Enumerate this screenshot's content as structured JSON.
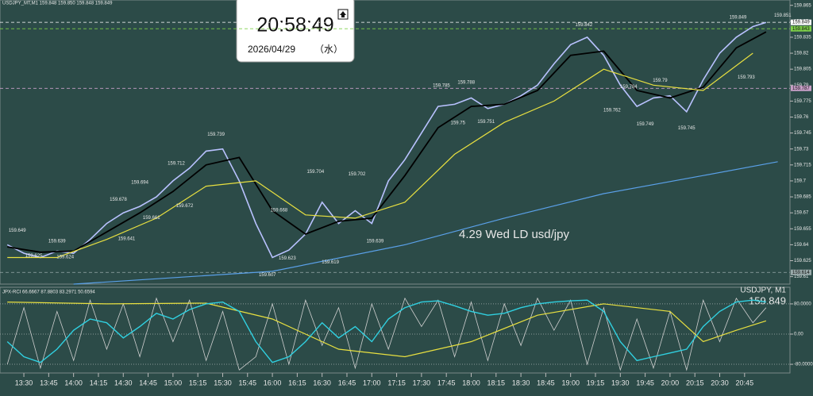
{
  "clock": {
    "time": "20:58:49",
    "date": "2026/04/29",
    "weekday": "（水）"
  },
  "chart_data": [
    {
      "type": "line",
      "title": "USDJPY_MT,M1  159.848 159.850 159.848 159.849",
      "annotation": "4.29 Wed LD usd/jpy",
      "xlim": [
        795.6,
        1272.4
      ],
      "ylim": [
        159.603,
        159.87
      ],
      "xticks": [
        {
          "value": 810,
          "label": "13:30"
        },
        {
          "value": 825,
          "label": "13:45"
        },
        {
          "value": 840,
          "label": "14:00"
        },
        {
          "value": 855,
          "label": "14:15"
        },
        {
          "value": 870,
          "label": "14:30"
        },
        {
          "value": 885,
          "label": "14:45"
        },
        {
          "value": 900,
          "label": "15:00"
        },
        {
          "value": 915,
          "label": "15:15"
        },
        {
          "value": 930,
          "label": "15:30"
        },
        {
          "value": 945,
          "label": "15:45"
        },
        {
          "value": 960,
          "label": "16:00"
        },
        {
          "value": 975,
          "label": "16:15"
        },
        {
          "value": 990,
          "label": "16:30"
        },
        {
          "value": 1005,
          "label": "16:45"
        },
        {
          "value": 1020,
          "label": "17:00"
        },
        {
          "value": 1035,
          "label": "17:15"
        },
        {
          "value": 1050,
          "label": "17:30"
        },
        {
          "value": 1065,
          "label": "17:45"
        },
        {
          "value": 1080,
          "label": "18:00"
        },
        {
          "value": 1095,
          "label": "18:15"
        },
        {
          "value": 1110,
          "label": "18:30"
        },
        {
          "value": 1125,
          "label": "18:45"
        },
        {
          "value": 1140,
          "label": "19:00"
        },
        {
          "value": 1155,
          "label": "19:15"
        },
        {
          "value": 1170,
          "label": "19:30"
        },
        {
          "value": 1185,
          "label": "19:45"
        },
        {
          "value": 1200,
          "label": "20:00"
        },
        {
          "value": 1215,
          "label": "20:15"
        },
        {
          "value": 1230,
          "label": "20:30"
        },
        {
          "value": 1245,
          "label": "20:45"
        }
      ],
      "yticks": [
        159.865,
        159.85,
        159.835,
        159.82,
        159.805,
        159.79,
        159.775,
        159.76,
        159.745,
        159.73,
        159.715,
        159.7,
        159.685,
        159.67,
        159.655,
        159.64,
        159.625,
        159.61
      ],
      "hlines": [
        {
          "value": 159.849,
          "color": "#ffffff"
        },
        {
          "value": 159.843,
          "color": "#7fd04a"
        },
        {
          "value": 159.787,
          "color": "#c8a0c8"
        },
        {
          "value": 159.614,
          "color": "#9aa"
        }
      ],
      "series": [
        {
          "color": "#b9c2ff",
          "width": 1.6,
          "x": [
            800,
            810,
            820,
            830,
            840,
            850,
            860,
            870,
            880,
            890,
            900,
            910,
            920,
            930,
            940,
            950,
            960,
            970,
            980,
            990,
            1000,
            1010,
            1020,
            1030,
            1040,
            1050,
            1060,
            1070,
            1080,
            1090,
            1100,
            1110,
            1120,
            1130,
            1140,
            1150,
            1160,
            1170,
            1180,
            1190,
            1200,
            1210,
            1220,
            1230,
            1240,
            1250,
            1258
          ],
          "values": [
            159.64,
            159.632,
            159.628,
            159.634,
            159.632,
            159.645,
            159.66,
            159.67,
            159.676,
            159.685,
            159.7,
            159.712,
            159.728,
            159.73,
            159.7,
            159.66,
            159.628,
            159.635,
            159.65,
            159.68,
            159.66,
            159.672,
            159.66,
            159.7,
            159.72,
            159.745,
            159.77,
            159.772,
            159.778,
            159.768,
            159.772,
            159.78,
            159.79,
            159.81,
            159.828,
            159.835,
            159.818,
            159.79,
            159.77,
            159.778,
            159.78,
            159.765,
            159.795,
            159.82,
            159.835,
            159.845,
            159.849
          ]
        },
        {
          "color": "#000000",
          "width": 1.8,
          "x": [
            800,
            820,
            840,
            860,
            880,
            900,
            920,
            940,
            960,
            980,
            1000,
            1020,
            1040,
            1060,
            1080,
            1100,
            1120,
            1140,
            1160,
            1180,
            1200,
            1220,
            1240,
            1258
          ],
          "values": [
            159.638,
            159.633,
            159.634,
            159.652,
            159.67,
            159.69,
            159.715,
            159.722,
            159.672,
            159.65,
            159.662,
            159.665,
            159.705,
            159.75,
            159.77,
            159.772,
            159.785,
            159.818,
            159.822,
            159.785,
            159.778,
            159.788,
            159.825,
            159.84
          ]
        },
        {
          "color": "#e8e040",
          "width": 1.2,
          "x": [
            800,
            830,
            860,
            890,
            920,
            950,
            980,
            1010,
            1040,
            1070,
            1100,
            1130,
            1160,
            1190,
            1220,
            1250
          ],
          "values": [
            159.628,
            159.628,
            159.645,
            159.665,
            159.695,
            159.7,
            159.668,
            159.665,
            159.68,
            159.725,
            159.755,
            159.775,
            159.805,
            159.79,
            159.785,
            159.82
          ]
        },
        {
          "color": "#5aa0e8",
          "width": 1.2,
          "x": [
            840,
            960,
            1040,
            1100,
            1160,
            1220,
            1265
          ],
          "values": [
            159.603,
            159.615,
            159.64,
            159.665,
            159.688,
            159.705,
            159.718
          ]
        }
      ],
      "price_labels": {
        "x": [
          806,
          816,
          830,
          835,
          867,
          880,
          872,
          887,
          902,
          907,
          926,
          964,
          957,
          969,
          986,
          995,
          1011,
          1022,
          1062,
          1072,
          1077,
          1089,
          1148,
          1175,
          1165,
          1194,
          1185,
          1210,
          1241,
          1246,
          1268
        ],
        "values": [
          159.649,
          159.625,
          159.639,
          159.624,
          159.678,
          159.694,
          159.641,
          159.661,
          159.712,
          159.672,
          159.739,
          159.668,
          159.607,
          159.623,
          159.704,
          159.619,
          159.702,
          159.639,
          159.785,
          159.75,
          159.788,
          159.751,
          159.842,
          159.784,
          159.762,
          159.79,
          159.749,
          159.745,
          159.849,
          159.793,
          159.851
        ]
      }
    },
    {
      "type": "line",
      "title": "JPX-RCI 66.6667 87.8803 83.2971 50.6594",
      "symbol": "USDJPY, M1",
      "price": "159.849",
      "xlim": [
        795.6,
        1272.4
      ],
      "ylim": [
        -103,
        124
      ],
      "yticks": [
        {
          "value": 80,
          "label": "80.0000"
        },
        {
          "value": 0,
          "label": "0.00"
        },
        {
          "value": -80,
          "label": "-80.0000"
        }
      ],
      "series": [
        {
          "color": "#d0d0d0",
          "width": 0.8,
          "x": [
            800,
            810,
            820,
            830,
            840,
            850,
            860,
            870,
            880,
            890,
            900,
            910,
            920,
            930,
            940,
            950,
            960,
            970,
            980,
            990,
            1000,
            1010,
            1020,
            1030,
            1040,
            1050,
            1060,
            1070,
            1080,
            1090,
            1100,
            1110,
            1120,
            1130,
            1140,
            1150,
            1160,
            1170,
            1180,
            1190,
            1200,
            1210,
            1220,
            1230,
            1240,
            1250,
            1258
          ],
          "values": [
            -80,
            70,
            -90,
            60,
            -70,
            90,
            -40,
            80,
            -60,
            95,
            -20,
            90,
            -70,
            60,
            -95,
            -60,
            80,
            -80,
            90,
            -30,
            70,
            -90,
            80,
            -40,
            95,
            20,
            90,
            -60,
            85,
            -70,
            80,
            -30,
            95,
            10,
            90,
            -80,
            70,
            -95,
            40,
            -90,
            60,
            -95,
            90,
            -20,
            95,
            30,
            70
          ]
        },
        {
          "color": "#e8e040",
          "width": 1.2,
          "x": [
            800,
            860,
            920,
            960,
            1000,
            1040,
            1080,
            1120,
            1160,
            1200,
            1220,
            1240,
            1258
          ],
          "values": [
            85,
            80,
            82,
            40,
            -40,
            -60,
            -20,
            50,
            80,
            60,
            -20,
            10,
            35
          ]
        },
        {
          "color": "#30d0e0",
          "width": 1.4,
          "x": [
            800,
            810,
            820,
            830,
            840,
            850,
            860,
            870,
            880,
            890,
            900,
            910,
            920,
            930,
            940,
            950,
            960,
            970,
            980,
            990,
            1000,
            1010,
            1020,
            1030,
            1040,
            1050,
            1060,
            1070,
            1080,
            1090,
            1100,
            1110,
            1120,
            1130,
            1140,
            1150,
            1160,
            1170,
            1180,
            1190,
            1200,
            1210,
            1220,
            1230,
            1240,
            1250,
            1258
          ],
          "values": [
            -20,
            -60,
            -75,
            -40,
            10,
            40,
            30,
            -10,
            20,
            55,
            40,
            65,
            80,
            85,
            60,
            -20,
            -75,
            -60,
            -20,
            30,
            -10,
            20,
            -20,
            40,
            70,
            85,
            88,
            75,
            60,
            50,
            55,
            70,
            80,
            85,
            88,
            90,
            60,
            -20,
            -70,
            -60,
            -50,
            -40,
            20,
            60,
            85,
            90,
            85
          ]
        }
      ]
    }
  ]
}
